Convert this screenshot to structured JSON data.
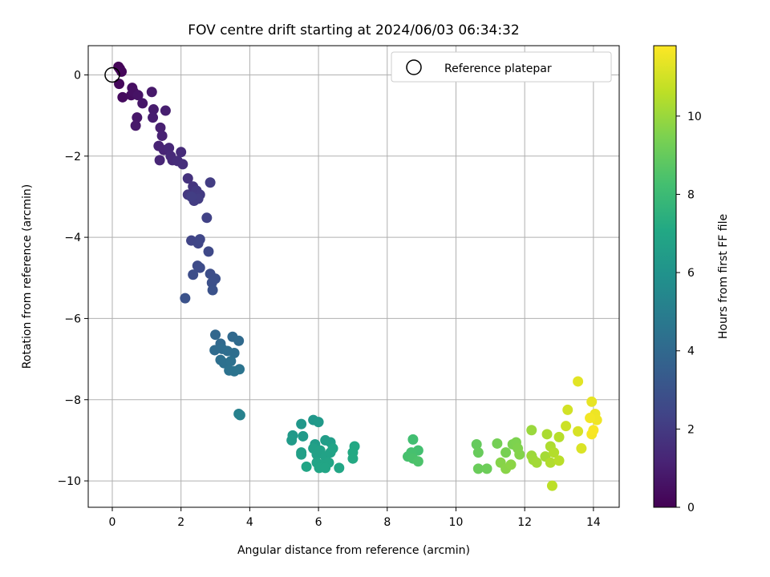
{
  "chart_data": {
    "type": "scatter",
    "title": "FOV centre drift starting at 2024/06/03 06:34:32",
    "xlabel": "Angular distance from reference (arcmin)",
    "ylabel": "Rotation from reference (arcmin)",
    "xlim": [
      -0.7,
      14.75
    ],
    "ylim": [
      -10.65,
      0.72
    ],
    "xticks": [
      0,
      2,
      4,
      6,
      8,
      10,
      12,
      14
    ],
    "yticks": [
      0,
      -2,
      -4,
      -6,
      -8,
      -10
    ],
    "xtick_labels": [
      "0",
      "2",
      "4",
      "6",
      "8",
      "10",
      "12",
      "14"
    ],
    "ytick_labels": [
      "0",
      "−2",
      "−4",
      "−6",
      "−8",
      "−10"
    ],
    "grid": true,
    "legend": {
      "position": "top-right",
      "entries": [
        {
          "label": "Reference platepar",
          "marker": "open-circle",
          "x": 0,
          "y": 0
        }
      ]
    },
    "colorbar": {
      "label": "Hours from first FF file",
      "range": [
        0,
        11.8
      ],
      "ticks": [
        0,
        2,
        4,
        6,
        8,
        10
      ],
      "tick_labels": [
        "0",
        "2",
        "4",
        "6",
        "8",
        "10"
      ],
      "colormap": "viridis"
    },
    "points": [
      {
        "x": 0.18,
        "y": 0.2,
        "t": 0.1
      },
      {
        "x": 0.22,
        "y": 0.15,
        "t": 0.15
      },
      {
        "x": 0.27,
        "y": 0.08,
        "t": 0.2
      },
      {
        "x": 0.2,
        "y": -0.22,
        "t": 0.25
      },
      {
        "x": 0.3,
        "y": -0.55,
        "t": 0.35
      },
      {
        "x": 0.55,
        "y": -0.5,
        "t": 0.4
      },
      {
        "x": 0.58,
        "y": -0.32,
        "t": 0.45
      },
      {
        "x": 0.62,
        "y": -0.42,
        "t": 0.5
      },
      {
        "x": 0.75,
        "y": -0.5,
        "t": 0.6
      },
      {
        "x": 0.88,
        "y": -0.7,
        "t": 0.7
      },
      {
        "x": 0.72,
        "y": -1.05,
        "t": 0.75
      },
      {
        "x": 0.68,
        "y": -1.25,
        "t": 0.8
      },
      {
        "x": 1.15,
        "y": -0.42,
        "t": 0.8
      },
      {
        "x": 1.2,
        "y": -0.85,
        "t": 0.9
      },
      {
        "x": 1.18,
        "y": -1.05,
        "t": 0.95
      },
      {
        "x": 1.55,
        "y": -0.88,
        "t": 1.0
      },
      {
        "x": 1.4,
        "y": -1.3,
        "t": 1.05
      },
      {
        "x": 1.45,
        "y": -1.5,
        "t": 1.1
      },
      {
        "x": 1.35,
        "y": -1.75,
        "t": 1.15
      },
      {
        "x": 1.5,
        "y": -1.85,
        "t": 1.2
      },
      {
        "x": 1.38,
        "y": -2.1,
        "t": 1.25
      },
      {
        "x": 1.65,
        "y": -1.8,
        "t": 1.3
      },
      {
        "x": 1.7,
        "y": -2.0,
        "t": 1.35
      },
      {
        "x": 1.75,
        "y": -2.1,
        "t": 1.4
      },
      {
        "x": 2.0,
        "y": -1.9,
        "t": 1.45
      },
      {
        "x": 1.9,
        "y": -2.12,
        "t": 1.5
      },
      {
        "x": 2.05,
        "y": -2.2,
        "t": 1.55
      },
      {
        "x": 2.2,
        "y": -2.55,
        "t": 1.7
      },
      {
        "x": 2.35,
        "y": -2.75,
        "t": 1.8
      },
      {
        "x": 2.2,
        "y": -2.95,
        "t": 1.9
      },
      {
        "x": 2.45,
        "y": -2.85,
        "t": 1.95
      },
      {
        "x": 2.55,
        "y": -2.95,
        "t": 2.0
      },
      {
        "x": 2.38,
        "y": -3.1,
        "t": 2.05
      },
      {
        "x": 2.5,
        "y": -3.05,
        "t": 2.1
      },
      {
        "x": 2.85,
        "y": -2.65,
        "t": 2.1
      },
      {
        "x": 2.3,
        "y": -3.0,
        "t": 2.15
      },
      {
        "x": 2.75,
        "y": -3.52,
        "t": 2.3
      },
      {
        "x": 2.3,
        "y": -4.08,
        "t": 2.4
      },
      {
        "x": 2.5,
        "y": -4.15,
        "t": 2.45
      },
      {
        "x": 2.55,
        "y": -4.05,
        "t": 2.5
      },
      {
        "x": 2.8,
        "y": -4.35,
        "t": 2.6
      },
      {
        "x": 2.48,
        "y": -4.7,
        "t": 2.65
      },
      {
        "x": 2.55,
        "y": -4.75,
        "t": 2.7
      },
      {
        "x": 2.35,
        "y": -4.92,
        "t": 2.75
      },
      {
        "x": 2.85,
        "y": -4.9,
        "t": 2.8
      },
      {
        "x": 3.0,
        "y": -5.02,
        "t": 2.85
      },
      {
        "x": 2.9,
        "y": -5.12,
        "t": 2.9
      },
      {
        "x": 2.92,
        "y": -5.3,
        "t": 2.95
      },
      {
        "x": 2.12,
        "y": -5.5,
        "t": 2.95
      },
      {
        "x": 3.0,
        "y": -6.4,
        "t": 3.9
      },
      {
        "x": 3.15,
        "y": -6.62,
        "t": 4.0
      },
      {
        "x": 3.5,
        "y": -6.45,
        "t": 4.0
      },
      {
        "x": 3.68,
        "y": -6.55,
        "t": 4.05
      },
      {
        "x": 2.98,
        "y": -6.78,
        "t": 4.1
      },
      {
        "x": 3.2,
        "y": -6.75,
        "t": 4.15
      },
      {
        "x": 3.35,
        "y": -6.8,
        "t": 4.2
      },
      {
        "x": 3.55,
        "y": -6.85,
        "t": 4.25
      },
      {
        "x": 3.15,
        "y": -7.02,
        "t": 4.3
      },
      {
        "x": 3.25,
        "y": -7.1,
        "t": 4.35
      },
      {
        "x": 3.45,
        "y": -7.05,
        "t": 4.4
      },
      {
        "x": 3.4,
        "y": -7.28,
        "t": 4.45
      },
      {
        "x": 3.55,
        "y": -7.3,
        "t": 4.5
      },
      {
        "x": 3.7,
        "y": -7.25,
        "t": 4.55
      },
      {
        "x": 3.68,
        "y": -8.35,
        "t": 5.1
      },
      {
        "x": 3.72,
        "y": -8.38,
        "t": 5.15
      },
      {
        "x": 5.5,
        "y": -8.6,
        "t": 6.2
      },
      {
        "x": 5.85,
        "y": -8.5,
        "t": 6.2
      },
      {
        "x": 6.0,
        "y": -8.55,
        "t": 6.3
      },
      {
        "x": 5.25,
        "y": -8.88,
        "t": 6.3
      },
      {
        "x": 5.55,
        "y": -8.9,
        "t": 6.35
      },
      {
        "x": 5.22,
        "y": -9.0,
        "t": 6.4
      },
      {
        "x": 5.9,
        "y": -9.1,
        "t": 6.45
      },
      {
        "x": 6.2,
        "y": -9.0,
        "t": 6.5
      },
      {
        "x": 6.35,
        "y": -9.05,
        "t": 6.55
      },
      {
        "x": 5.5,
        "y": -9.3,
        "t": 6.6
      },
      {
        "x": 5.5,
        "y": -9.35,
        "t": 6.62
      },
      {
        "x": 5.85,
        "y": -9.2,
        "t": 6.65
      },
      {
        "x": 5.95,
        "y": -9.35,
        "t": 6.7
      },
      {
        "x": 6.05,
        "y": -9.25,
        "t": 6.72
      },
      {
        "x": 6.2,
        "y": -9.4,
        "t": 6.75
      },
      {
        "x": 6.35,
        "y": -9.3,
        "t": 6.78
      },
      {
        "x": 6.42,
        "y": -9.2,
        "t": 6.8
      },
      {
        "x": 5.95,
        "y": -9.55,
        "t": 6.85
      },
      {
        "x": 6.1,
        "y": -9.6,
        "t": 6.88
      },
      {
        "x": 6.3,
        "y": -9.55,
        "t": 6.9
      },
      {
        "x": 6.02,
        "y": -9.68,
        "t": 6.92
      },
      {
        "x": 6.2,
        "y": -9.68,
        "t": 6.95
      },
      {
        "x": 5.65,
        "y": -9.65,
        "t": 6.95
      },
      {
        "x": 6.6,
        "y": -9.68,
        "t": 7.0
      },
      {
        "x": 7.05,
        "y": -9.15,
        "t": 7.1
      },
      {
        "x": 7.0,
        "y": -9.3,
        "t": 7.12
      },
      {
        "x": 7.0,
        "y": -9.45,
        "t": 7.15
      },
      {
        "x": 8.75,
        "y": -8.98,
        "t": 8.2
      },
      {
        "x": 8.9,
        "y": -9.25,
        "t": 8.25
      },
      {
        "x": 8.7,
        "y": -9.3,
        "t": 8.3
      },
      {
        "x": 8.6,
        "y": -9.4,
        "t": 8.35
      },
      {
        "x": 8.75,
        "y": -9.45,
        "t": 8.4
      },
      {
        "x": 8.9,
        "y": -9.52,
        "t": 8.45
      },
      {
        "x": 10.6,
        "y": -9.1,
        "t": 9.0
      },
      {
        "x": 10.65,
        "y": -9.3,
        "t": 9.05
      },
      {
        "x": 10.65,
        "y": -9.7,
        "t": 9.1
      },
      {
        "x": 10.9,
        "y": -9.7,
        "t": 9.15
      },
      {
        "x": 11.2,
        "y": -9.08,
        "t": 9.3
      },
      {
        "x": 11.45,
        "y": -9.3,
        "t": 9.35
      },
      {
        "x": 11.65,
        "y": -9.1,
        "t": 9.45
      },
      {
        "x": 11.75,
        "y": -9.05,
        "t": 9.5
      },
      {
        "x": 11.8,
        "y": -9.2,
        "t": 9.55
      },
      {
        "x": 11.85,
        "y": -9.35,
        "t": 9.6
      },
      {
        "x": 11.3,
        "y": -9.55,
        "t": 9.65
      },
      {
        "x": 11.45,
        "y": -9.7,
        "t": 9.7
      },
      {
        "x": 11.6,
        "y": -9.6,
        "t": 9.75
      },
      {
        "x": 12.2,
        "y": -8.75,
        "t": 10.0
      },
      {
        "x": 12.2,
        "y": -9.38,
        "t": 10.05
      },
      {
        "x": 12.25,
        "y": -9.48,
        "t": 10.1
      },
      {
        "x": 12.35,
        "y": -9.55,
        "t": 10.15
      },
      {
        "x": 12.6,
        "y": -9.4,
        "t": 10.2
      },
      {
        "x": 12.65,
        "y": -8.85,
        "t": 10.3
      },
      {
        "x": 12.75,
        "y": -9.15,
        "t": 10.35
      },
      {
        "x": 12.75,
        "y": -9.55,
        "t": 10.4
      },
      {
        "x": 12.85,
        "y": -9.3,
        "t": 10.45
      },
      {
        "x": 13.0,
        "y": -8.92,
        "t": 10.5
      },
      {
        "x": 13.0,
        "y": -9.5,
        "t": 10.55
      },
      {
        "x": 12.8,
        "y": -10.12,
        "t": 10.6
      },
      {
        "x": 13.2,
        "y": -8.65,
        "t": 10.9
      },
      {
        "x": 13.25,
        "y": -8.25,
        "t": 11.0
      },
      {
        "x": 13.55,
        "y": -8.78,
        "t": 11.1
      },
      {
        "x": 13.65,
        "y": -9.2,
        "t": 11.15
      },
      {
        "x": 13.55,
        "y": -7.55,
        "t": 11.3
      },
      {
        "x": 13.95,
        "y": -8.05,
        "t": 11.4
      },
      {
        "x": 14.05,
        "y": -8.35,
        "t": 11.5
      },
      {
        "x": 14.1,
        "y": -8.5,
        "t": 11.55
      },
      {
        "x": 13.9,
        "y": -8.45,
        "t": 11.6
      },
      {
        "x": 13.95,
        "y": -8.85,
        "t": 11.65
      },
      {
        "x": 14.0,
        "y": -8.75,
        "t": 11.7
      }
    ]
  }
}
